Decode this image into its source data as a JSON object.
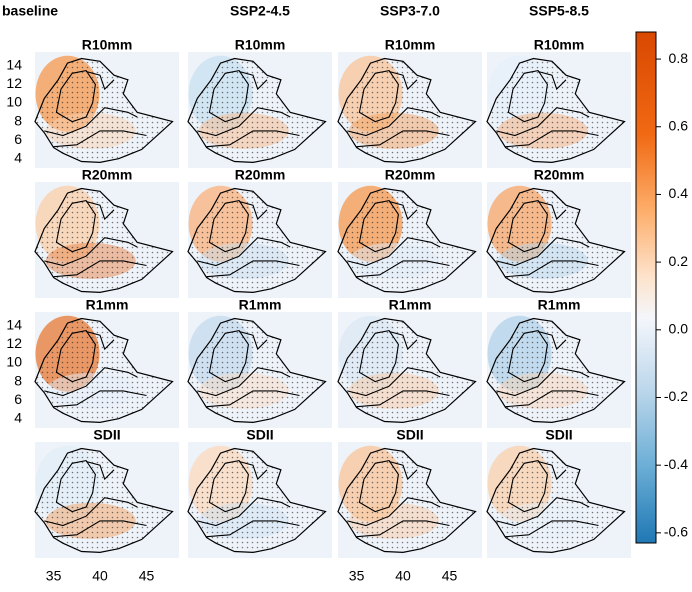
{
  "columns": [
    "baseline",
    "SSP2-4.5",
    "SSP3-7.0",
    "SSP5-8.5"
  ],
  "rows": [
    "R10mm",
    "R20mm",
    "R1mm",
    "SDII"
  ],
  "map_axes": {
    "xlim": [
      33,
      48.5
    ],
    "ylim": [
      3,
      15.5
    ],
    "xticks": [
      35,
      40,
      45
    ],
    "yticks": [
      14,
      12,
      10,
      8,
      6,
      4
    ]
  },
  "colorbar": {
    "clim": [
      -0.63,
      0.88
    ],
    "ticks": [
      0.8,
      0.6,
      0.4,
      0.2,
      {
        "value": 0,
        "label": "0.0"
      },
      -0.2,
      -0.4,
      -0.6
    ]
  }
}
